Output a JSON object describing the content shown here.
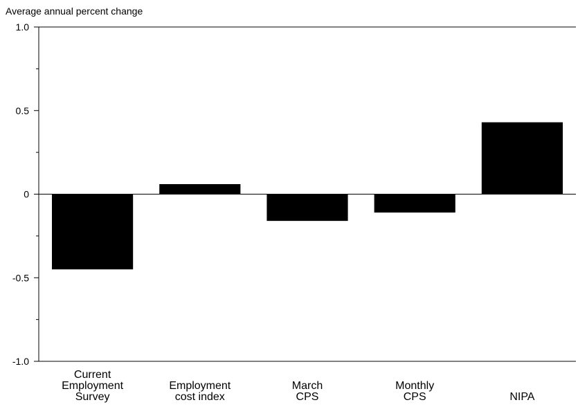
{
  "chart_data": {
    "type": "bar",
    "ylabel": "Average annual percent change",
    "ylim": [
      -1.0,
      1.0
    ],
    "yticks": [
      {
        "value": 1.0,
        "label": "1.0"
      },
      {
        "value": 0.5,
        "label": "0.5"
      },
      {
        "value": 0,
        "label": "0"
      },
      {
        "value": -0.5,
        "label": "-0.5"
      },
      {
        "value": -1.0,
        "label": "-1.0"
      }
    ],
    "minor_ticks": [
      0.75,
      0.25,
      -0.25,
      -0.75
    ],
    "categories": [
      {
        "label": [
          "Current",
          "Employment",
          "Survey"
        ],
        "value": -0.45
      },
      {
        "label": [
          "Employment",
          "cost index"
        ],
        "value": 0.06
      },
      {
        "label": [
          "March",
          "CPS"
        ],
        "value": -0.16
      },
      {
        "label": [
          "Monthly",
          "CPS"
        ],
        "value": -0.11
      },
      {
        "label": [
          "NIPA"
        ],
        "value": 0.43
      }
    ],
    "bar_color": "#000000",
    "grid": false
  }
}
